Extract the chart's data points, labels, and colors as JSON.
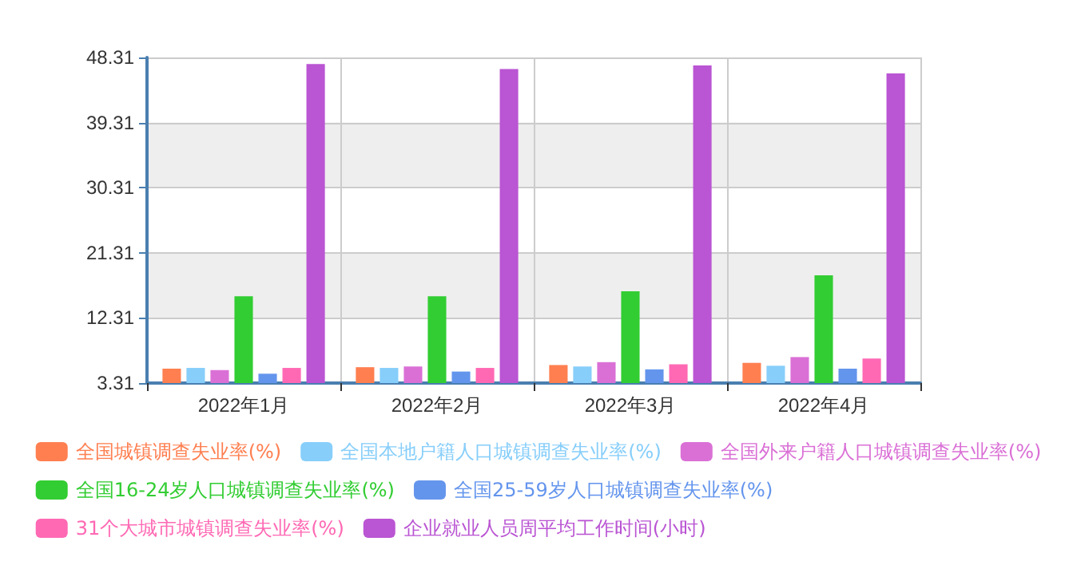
{
  "chart_data": {
    "type": "bar",
    "categories": [
      "2022年1月",
      "2022年2月",
      "2022年3月",
      "2022年4月"
    ],
    "series": [
      {
        "name": "全国城镇调查失业率(%)",
        "color": "#ff7f50",
        "values": [
          5.3,
          5.5,
          5.8,
          6.1
        ]
      },
      {
        "name": "全国本地户籍人口城镇调查失业率(%)",
        "color": "#87cefa",
        "values": [
          5.4,
          5.4,
          5.6,
          5.7
        ]
      },
      {
        "name": "全国外来户籍人口城镇调查失业率(%)",
        "color": "#da70d6",
        "values": [
          5.1,
          5.6,
          6.2,
          6.9
        ]
      },
      {
        "name": "全国16-24岁人口城镇调查失业率(%)",
        "color": "#32cd32",
        "values": [
          15.3,
          15.3,
          16.0,
          18.2
        ]
      },
      {
        "name": "全国25-59岁人口城镇调查失业率(%)",
        "color": "#6495ed",
        "values": [
          4.6,
          4.9,
          5.2,
          5.3
        ]
      },
      {
        "name": "31个大城市城镇调查失业率(%)",
        "color": "#ff69b4",
        "values": [
          5.4,
          5.4,
          5.9,
          6.7
        ]
      },
      {
        "name": "企业就业人员周平均工作时间(小时)",
        "color": "#ba55d3",
        "values": [
          47.4,
          46.7,
          47.2,
          46.1
        ]
      }
    ],
    "ylim": [
      3.31,
      48.31
    ],
    "yticks": [
      3.31,
      12.31,
      21.31,
      30.31,
      39.31,
      48.31
    ],
    "grid": true,
    "legend": "bottom"
  }
}
